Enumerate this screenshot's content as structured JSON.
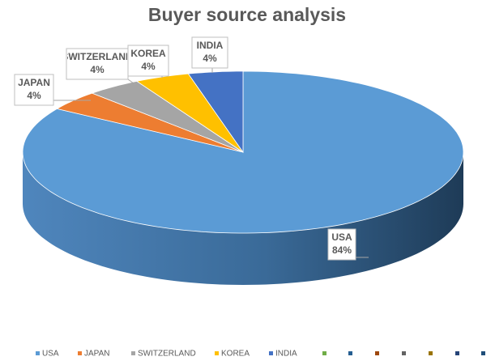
{
  "chart_data": {
    "type": "pie3d",
    "title": "Buyer source analysis",
    "categories": [
      "USA",
      "JAPAN",
      "SWITZERLAND",
      "KOREA",
      "INDIA"
    ],
    "values": [
      84,
      4,
      4,
      4,
      4
    ],
    "value_labels": [
      "84%",
      "4%",
      "4%",
      "4%",
      "4%"
    ],
    "colors": [
      "#5b9bd5",
      "#ed7d31",
      "#a5a5a5",
      "#ffc000",
      "#4472c4"
    ],
    "legend": "bottom"
  }
}
